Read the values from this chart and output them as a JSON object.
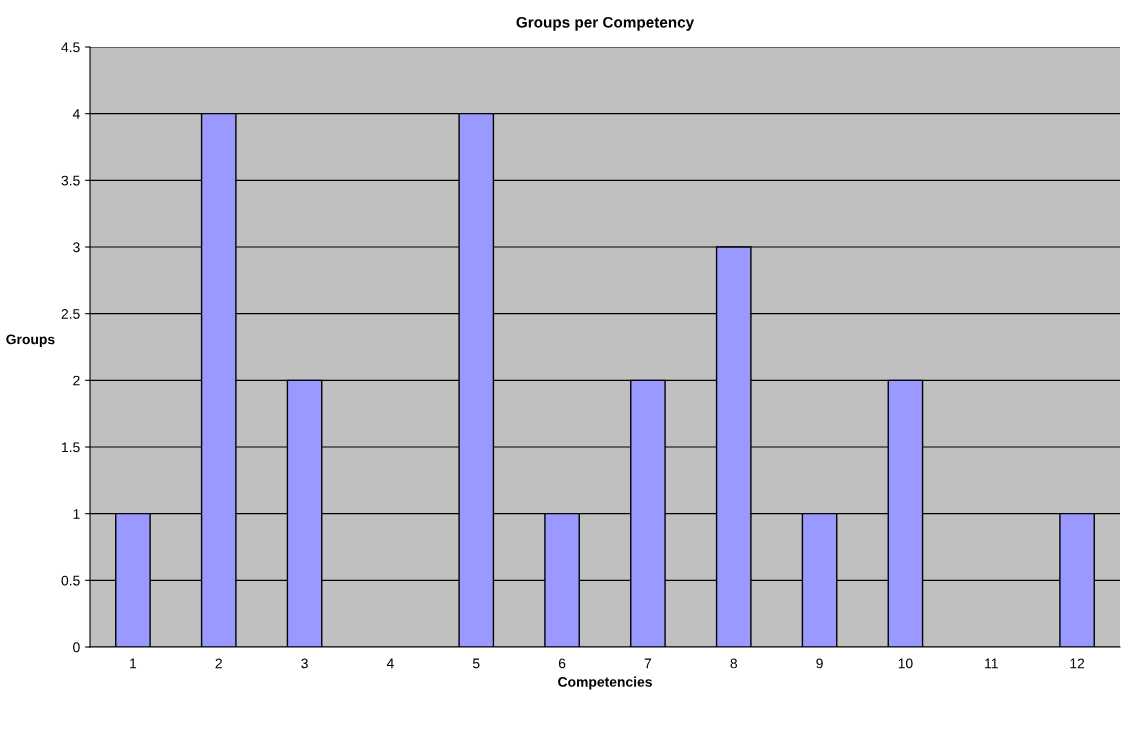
{
  "chart_data": {
    "type": "bar",
    "title": "Groups per Competency",
    "xlabel": "Competencies",
    "ylabel": "Groups",
    "categories": [
      "1",
      "2",
      "3",
      "4",
      "5",
      "6",
      "7",
      "8",
      "9",
      "10",
      "11",
      "12"
    ],
    "values": [
      1,
      4,
      2,
      0,
      4,
      1,
      2,
      3,
      1,
      2,
      0,
      1
    ],
    "color": "#9999ff",
    "ylim": [
      0,
      4.5
    ],
    "yticks": [
      0,
      0.5,
      1,
      1.5,
      2,
      2.5,
      3,
      3.5,
      4,
      4.5
    ],
    "grid": "y",
    "legend": false
  }
}
